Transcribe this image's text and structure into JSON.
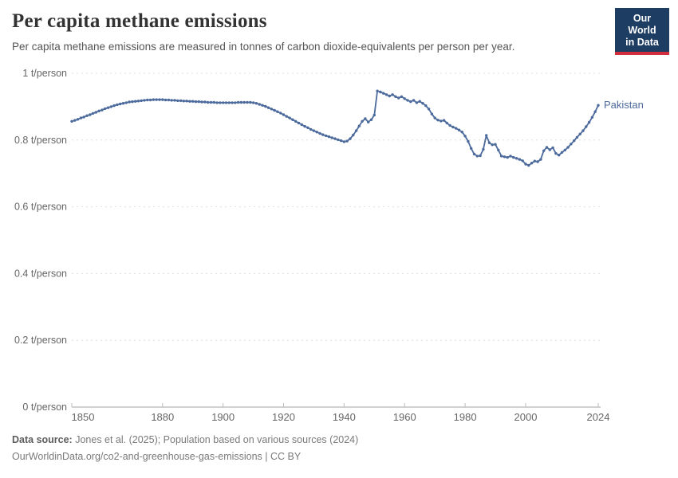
{
  "header": {
    "title": "Per capita methane emissions",
    "subtitle": "Per capita methane emissions are measured in tonnes of carbon dioxide-equivalents per person per year.",
    "logo": {
      "line1": "Our World",
      "line2": "in Data"
    }
  },
  "chart_data": {
    "type": "line",
    "title": "Per capita methane emissions",
    "unit": "t/person",
    "xlim": [
      1850,
      2024
    ],
    "ylim": [
      0,
      1
    ],
    "grid": "horizontal-dashed",
    "legend_position": "end-of-line-label",
    "x_ticks": [
      1850,
      1880,
      1900,
      1920,
      1940,
      1960,
      1980,
      2000,
      2024
    ],
    "y_ticks": [
      {
        "value": 0,
        "label": "0 t/person"
      },
      {
        "value": 0.2,
        "label": "0.2 t/person"
      },
      {
        "value": 0.4,
        "label": "0.4 t/person"
      },
      {
        "value": 0.6,
        "label": "0.6 t/person"
      },
      {
        "value": 0.8,
        "label": "0.8 t/person"
      },
      {
        "value": 1,
        "label": "1 t/person"
      }
    ],
    "series": [
      {
        "name": "Pakistan",
        "color": "#4c6a9c",
        "x_start": 1850,
        "x_step": 1,
        "values": [
          0.856,
          0.859,
          0.862,
          0.866,
          0.869,
          0.873,
          0.876,
          0.88,
          0.883,
          0.887,
          0.89,
          0.894,
          0.897,
          0.9,
          0.903,
          0.906,
          0.908,
          0.91,
          0.912,
          0.914,
          0.915,
          0.916,
          0.917,
          0.918,
          0.919,
          0.92,
          0.92,
          0.921,
          0.921,
          0.921,
          0.921,
          0.92,
          0.92,
          0.919,
          0.919,
          0.918,
          0.918,
          0.917,
          0.917,
          0.916,
          0.916,
          0.915,
          0.915,
          0.914,
          0.914,
          0.913,
          0.913,
          0.913,
          0.912,
          0.912,
          0.912,
          0.912,
          0.912,
          0.912,
          0.912,
          0.913,
          0.913,
          0.913,
          0.913,
          0.913,
          0.912,
          0.91,
          0.907,
          0.904,
          0.901,
          0.897,
          0.893,
          0.889,
          0.885,
          0.881,
          0.876,
          0.871,
          0.866,
          0.861,
          0.856,
          0.851,
          0.846,
          0.841,
          0.837,
          0.832,
          0.828,
          0.824,
          0.82,
          0.816,
          0.813,
          0.81,
          0.807,
          0.804,
          0.801,
          0.798,
          0.795,
          0.797,
          0.804,
          0.815,
          0.828,
          0.842,
          0.856,
          0.864,
          0.854,
          0.861,
          0.875,
          0.947,
          0.944,
          0.94,
          0.936,
          0.932,
          0.936,
          0.93,
          0.926,
          0.93,
          0.924,
          0.919,
          0.915,
          0.919,
          0.912,
          0.916,
          0.91,
          0.903,
          0.893,
          0.878,
          0.866,
          0.86,
          0.857,
          0.859,
          0.851,
          0.844,
          0.839,
          0.835,
          0.83,
          0.824,
          0.812,
          0.796,
          0.775,
          0.758,
          0.752,
          0.753,
          0.772,
          0.814,
          0.792,
          0.786,
          0.787,
          0.77,
          0.752,
          0.75,
          0.748,
          0.752,
          0.748,
          0.745,
          0.742,
          0.738,
          0.728,
          0.724,
          0.731,
          0.737,
          0.735,
          0.742,
          0.768,
          0.778,
          0.771,
          0.777,
          0.76,
          0.755,
          0.763,
          0.77,
          0.778,
          0.788,
          0.798,
          0.808,
          0.818,
          0.828,
          0.84,
          0.853,
          0.868,
          0.885,
          0.904
        ]
      }
    ]
  },
  "footer": {
    "source_label": "Data source:",
    "source_text": " Jones et al. (2025); Population based on various sources (2024)",
    "url_line": "OurWorldinData.org/co2-and-greenhouse-gas-emissions | CC BY"
  },
  "colors": {
    "series_blue": "#4c6a9c",
    "gridline": "#dedede",
    "axis_line": "#a5a5a5",
    "tick_mark": "#bdbdbd",
    "tick_label": "#666666",
    "logo_navy": "#1d3d63",
    "logo_red": "#d02e3d"
  }
}
